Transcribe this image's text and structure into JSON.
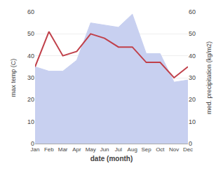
{
  "chart_data": {
    "type": "line",
    "xlabel": "date (month)",
    "ylabel": "max temp (C)",
    "y2label": "med. precipitation (kg/m2)",
    "categories": [
      "Jan",
      "Feb",
      "Mar",
      "Apr",
      "May",
      "Jun",
      "Jul",
      "Aug",
      "Sep",
      "Oct",
      "Nov",
      "Dec"
    ],
    "series": [
      {
        "type": "line",
        "color": "#c0404a",
        "values": [
          35,
          51,
          40,
          42,
          50,
          48,
          44,
          44,
          37,
          37,
          30,
          35
        ]
      },
      {
        "type": "area",
        "axis": "y2",
        "color": "#c8d0f0",
        "values": [
          35,
          33,
          33,
          38,
          55,
          54,
          53,
          59,
          41,
          41,
          28,
          29
        ]
      }
    ],
    "ylim": [
      0,
      60
    ],
    "yticks": [
      0,
      10,
      20,
      30,
      40,
      50,
      60
    ],
    "y2lim": [
      0,
      60
    ],
    "y2ticks": [
      0,
      10,
      20,
      30,
      40,
      50,
      60
    ],
    "grid": true
  }
}
